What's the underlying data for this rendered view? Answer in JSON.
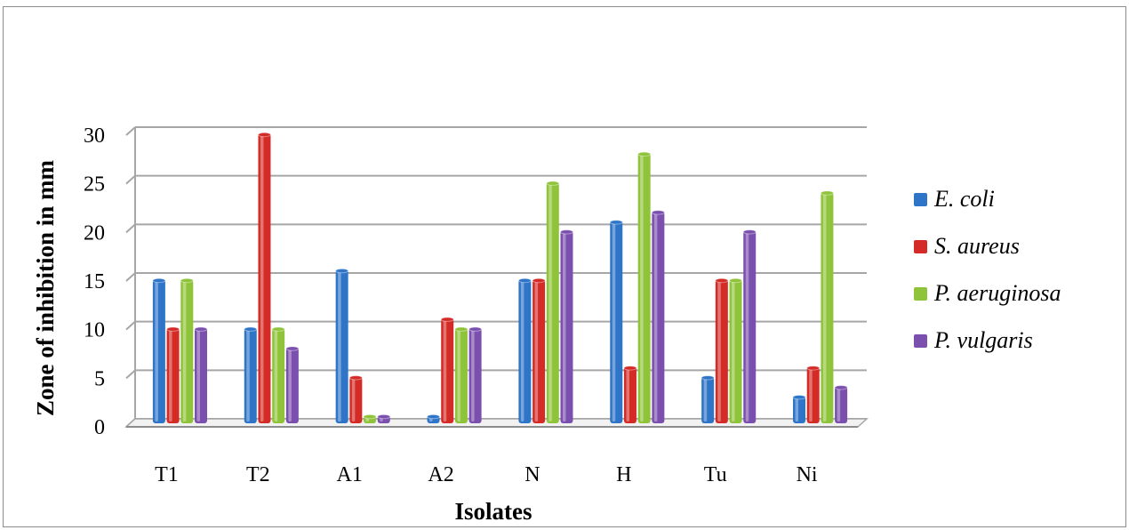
{
  "chart_data": {
    "type": "bar",
    "title": "",
    "xlabel": "Isolates",
    "ylabel": "Zone of inhibition  in mm",
    "categories": [
      "T1",
      "T2",
      "A1",
      "A2",
      "N",
      "H",
      "Tu",
      "Ni"
    ],
    "yticks": [
      "0",
      "5",
      "10",
      "15",
      "20",
      "25",
      "30"
    ],
    "ylim": [
      0,
      30
    ],
    "grid": true,
    "legend_position": "right",
    "series": [
      {
        "name": "E. coli",
        "color": "#2e75c8",
        "values": [
          15,
          10,
          16,
          1,
          15,
          21,
          5,
          3
        ]
      },
      {
        "name": "S. aureus",
        "color": "#d42b26",
        "values": [
          10,
          30,
          5,
          11,
          15,
          6,
          15,
          6
        ]
      },
      {
        "name": "P. aeruginosa",
        "color": "#8fc43a",
        "values": [
          15,
          10,
          1,
          10,
          25,
          28,
          15,
          24
        ]
      },
      {
        "name": "P. vulgaris",
        "color": "#7a4fae",
        "values": [
          10,
          8,
          1,
          10,
          20,
          22,
          20,
          4
        ]
      }
    ]
  }
}
